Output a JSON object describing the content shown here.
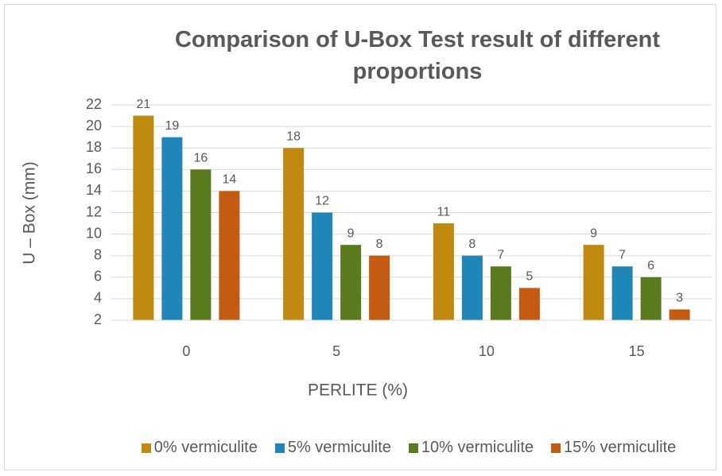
{
  "chart_data": {
    "type": "bar",
    "title": "Comparison of U-Box Test result of different proportions",
    "x_label": "PERLITE (%)",
    "y_label": "U – Box (mm)",
    "categories": [
      "0",
      "5",
      "10",
      "15"
    ],
    "series": [
      {
        "name": "0% vermiculite",
        "color": "#c0890f",
        "values": [
          21,
          18,
          11,
          9
        ]
      },
      {
        "name": "5% vermiculite",
        "color": "#1f87b8",
        "values": [
          19,
          12,
          8,
          7
        ]
      },
      {
        "name": "10% vermiculite",
        "color": "#5a7a1e",
        "values": [
          16,
          9,
          7,
          6
        ]
      },
      {
        "name": "15% vermiculite",
        "color": "#c55a11",
        "values": [
          14,
          8,
          5,
          3
        ]
      }
    ],
    "ylim": [
      2,
      22
    ],
    "yticks": [
      2,
      4,
      6,
      8,
      10,
      12,
      14,
      16,
      18,
      20,
      22
    ],
    "grid": true,
    "legend": "bottom"
  }
}
